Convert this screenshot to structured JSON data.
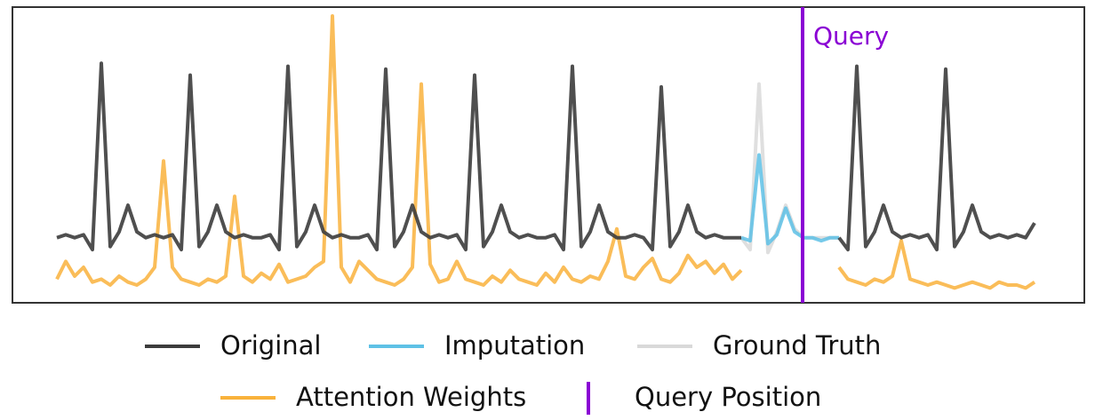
{
  "chart_data": {
    "type": "line",
    "xlim": [
      0,
      1206
    ],
    "ylim": [
      0,
      100
    ],
    "x": [
      50,
      60,
      70,
      80,
      90,
      100,
      110,
      120,
      130,
      140,
      150,
      160,
      170,
      180,
      190,
      200,
      210,
      220,
      230,
      240,
      250,
      260,
      270,
      280,
      290,
      300,
      310,
      320,
      330,
      340,
      350,
      360,
      370,
      380,
      390,
      400,
      410,
      420,
      430,
      440,
      450,
      460,
      470,
      480,
      490,
      500,
      510,
      520,
      530,
      540,
      550,
      560,
      570,
      580,
      590,
      600,
      610,
      620,
      630,
      640,
      650,
      660,
      670,
      680,
      690,
      700,
      710,
      720,
      730,
      740,
      750,
      760,
      770,
      780,
      790,
      800,
      810,
      820,
      830,
      840,
      850,
      860,
      870,
      880,
      890,
      900,
      910,
      920,
      930,
      940,
      950,
      960,
      970,
      980,
      990,
      1000,
      1010,
      1020,
      1030,
      1040,
      1050,
      1060,
      1070,
      1080,
      1090,
      1100,
      1110,
      1120,
      1130,
      1140,
      1150
    ],
    "series": [
      {
        "name": "Original",
        "color": "#3c3c3c",
        "values": [
          22,
          23,
          22,
          23,
          18,
          81,
          19,
          24,
          33,
          24,
          22,
          23,
          22,
          23,
          18,
          77,
          19,
          24,
          33,
          24,
          22,
          23,
          22,
          22,
          23,
          18,
          80,
          19,
          24,
          33,
          24,
          22,
          23,
          22,
          22,
          23,
          18,
          79,
          19,
          24,
          33,
          24,
          22,
          23,
          22,
          23,
          18,
          77,
          19,
          24,
          33,
          24,
          22,
          23,
          22,
          22,
          23,
          18,
          80,
          19,
          24,
          33,
          24,
          22,
          22,
          23,
          22,
          18,
          73,
          19,
          24,
          33,
          24,
          22,
          23,
          22,
          22,
          22,
          null,
          null,
          null,
          null,
          null,
          null,
          null,
          null,
          null,
          null,
          22,
          18,
          80,
          19,
          24,
          33,
          24,
          22,
          23,
          22,
          23,
          18,
          79,
          19,
          24,
          33,
          24,
          22,
          23,
          22,
          23,
          22,
          27
        ]
      },
      {
        "name": "Imputation",
        "color": "#5ec1e6",
        "values": [
          null,
          null,
          null,
          null,
          null,
          null,
          null,
          null,
          null,
          null,
          null,
          null,
          null,
          null,
          null,
          null,
          null,
          null,
          null,
          null,
          null,
          null,
          null,
          null,
          null,
          null,
          null,
          null,
          null,
          null,
          null,
          null,
          null,
          null,
          null,
          null,
          null,
          null,
          null,
          null,
          null,
          null,
          null,
          null,
          null,
          null,
          null,
          null,
          null,
          null,
          null,
          null,
          null,
          null,
          null,
          null,
          null,
          null,
          null,
          null,
          null,
          null,
          null,
          null,
          null,
          null,
          null,
          null,
          null,
          null,
          null,
          null,
          null,
          null,
          null,
          null,
          null,
          22,
          21,
          50,
          20,
          23,
          32,
          24,
          22,
          22,
          21,
          22,
          22,
          null,
          null,
          null,
          null,
          null,
          null,
          null,
          null,
          null,
          null,
          null,
          null,
          null,
          null,
          null,
          null,
          null,
          null,
          null,
          null,
          null,
          null
        ]
      },
      {
        "name": "Ground Truth",
        "color": "#d9d9d9",
        "values": [
          null,
          null,
          null,
          null,
          null,
          null,
          null,
          null,
          null,
          null,
          null,
          null,
          null,
          null,
          null,
          null,
          null,
          null,
          null,
          null,
          null,
          null,
          null,
          null,
          null,
          null,
          null,
          null,
          null,
          null,
          null,
          null,
          null,
          null,
          null,
          null,
          null,
          null,
          null,
          null,
          null,
          null,
          null,
          null,
          null,
          null,
          null,
          null,
          null,
          null,
          null,
          null,
          null,
          null,
          null,
          null,
          null,
          null,
          null,
          null,
          null,
          null,
          null,
          null,
          null,
          null,
          null,
          null,
          null,
          null,
          null,
          null,
          null,
          null,
          null,
          null,
          null,
          22,
          18,
          74,
          17,
          24,
          33,
          25,
          22,
          22,
          22,
          22,
          22,
          null,
          null,
          null,
          null,
          null,
          null,
          null,
          null,
          null,
          null,
          null,
          null,
          null,
          null,
          null,
          null,
          null,
          null,
          null,
          null,
          null,
          null
        ]
      },
      {
        "name": "Attention Weights",
        "color": "#f9b23c",
        "values": [
          8,
          14,
          9,
          12,
          7,
          8,
          6,
          9,
          7,
          6,
          8,
          12,
          48,
          12,
          8,
          7,
          6,
          8,
          7,
          9,
          36,
          9,
          7,
          10,
          8,
          13,
          7,
          8,
          9,
          12,
          14,
          97,
          12,
          7,
          14,
          11,
          8,
          7,
          6,
          8,
          12,
          74,
          13,
          7,
          8,
          14,
          8,
          7,
          6,
          9,
          7,
          11,
          8,
          7,
          6,
          10,
          7,
          12,
          8,
          7,
          9,
          8,
          14,
          25,
          9,
          8,
          12,
          15,
          8,
          7,
          10,
          16,
          12,
          14,
          10,
          13,
          8,
          11,
          null,
          null,
          null,
          null,
          null,
          null,
          null,
          null,
          null,
          null,
          12,
          8,
          7,
          6,
          8,
          7,
          9,
          21,
          8,
          7,
          6,
          7,
          6,
          5,
          6,
          7,
          6,
          5,
          7,
          6,
          6,
          5,
          7
        ]
      }
    ],
    "query": {
      "name": "Query Position",
      "x": 889,
      "color": "#8a00d4",
      "label": "Query"
    }
  }
}
